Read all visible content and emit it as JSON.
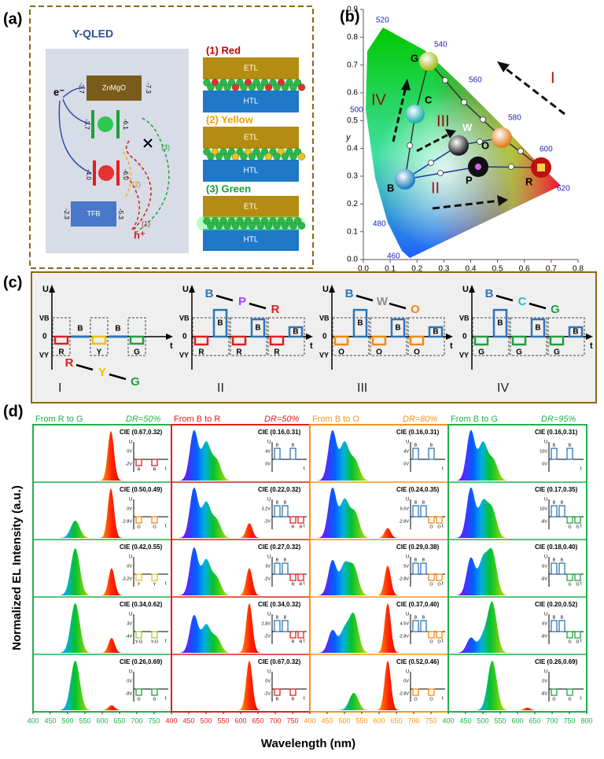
{
  "panel_a": {
    "label": "(a)",
    "title": "Y-QLED",
    "electron": "e⁻",
    "hole": "h⁺",
    "znmgo": "ZnMgO",
    "tfb": "TFB",
    "levels": [
      "-3.7",
      "-7.3",
      "-3.7",
      "-6.1",
      "-4.0",
      "-6.0",
      "-2.3",
      "-5.3"
    ],
    "paths": [
      "(1)",
      "(2)",
      "(3)"
    ],
    "devices": [
      {
        "heading": "(1) Red",
        "etl": "ETL",
        "htl": "HTL"
      },
      {
        "heading": "(2) Yellow",
        "etl": "ETL",
        "htl": "HTL"
      },
      {
        "heading": "(3) Green",
        "etl": "ETL",
        "htl": "HTL"
      }
    ]
  },
  "panel_b": {
    "label": "(b)",
    "ylabel": "y",
    "xlim": [
      0,
      0.8
    ],
    "ylim": [
      0,
      0.9
    ],
    "xticks": [
      {
        "value": 0,
        "label": "0.0"
      },
      0.1,
      0.2,
      0.3,
      0.4,
      0.5,
      0.6,
      0.7,
      0.8
    ],
    "yticks": [
      {
        "value": 0,
        "label": "0.0"
      },
      0.1,
      0.2,
      0.3,
      0.4,
      0.5,
      0.6,
      0.7,
      0.8,
      0.9
    ],
    "wavelengths": [
      "520",
      "540",
      "560",
      "580",
      "600",
      "620",
      "500",
      "480",
      "460"
    ],
    "points": [
      "G",
      "C",
      "W",
      "O",
      "B",
      "P",
      "R"
    ],
    "routes": [
      "I",
      "II",
      "III",
      "IV"
    ]
  },
  "panel_c": {
    "label": "(c)",
    "diagrams": [
      {
        "axis": "U",
        "vb": "VB",
        "zero": "0",
        "vy": "VY",
        "t": "t",
        "sequence": [
          "R",
          "Y",
          "G"
        ],
        "pulses": [
          "R",
          "B",
          "Y",
          "B",
          "G"
        ],
        "route": "I"
      },
      {
        "axis": "U",
        "vb": "VB",
        "zero": "0",
        "vy": "VY",
        "t": "t",
        "sequence": [
          "B",
          "P",
          "R"
        ],
        "pulses": [
          "R",
          "B",
          "R",
          "B",
          "R",
          "B"
        ],
        "route": "II"
      },
      {
        "axis": "U",
        "vb": "VB",
        "zero": "0",
        "vy": "VY",
        "t": "t",
        "sequence": [
          "B",
          "W",
          "O"
        ],
        "pulses": [
          "O",
          "B",
          "O",
          "B",
          "O",
          "B"
        ],
        "route": "III"
      },
      {
        "axis": "U",
        "vb": "VB",
        "zero": "0",
        "vy": "VY",
        "t": "t",
        "sequence": [
          "B",
          "C",
          "G"
        ],
        "pulses": [
          "G",
          "B",
          "G",
          "B",
          "G",
          "B"
        ],
        "route": "IV"
      }
    ]
  },
  "panel_d": {
    "label": "(d)",
    "ylabel": "Normalized EL Intensity (a.u.)",
    "xlabel": "Wavelength (nm)",
    "xlim": [
      400,
      800
    ],
    "xticks": [
      400,
      450,
      500,
      550,
      600,
      650,
      700,
      750,
      800
    ],
    "columns": [
      {
        "header": "From R to G",
        "dr": "DR=50%",
        "color": "#22b14c",
        "cells": [
          {
            "cie": "CIE (0.67,0.32)",
            "u": "U",
            "t": "t",
            "ticks": [
              "0V",
              "-2V"
            ],
            "letters": [
              "R",
              "R"
            ],
            "peaks": [
              [
                625,
                1
              ]
            ]
          },
          {
            "cie": "CIE (0.50,0.49)",
            "u": "U",
            "t": "t",
            "ticks": [
              "0V",
              "-2.8V"
            ],
            "letters": [
              "O",
              "O"
            ],
            "peaks": [
              [
                522,
                0.35
              ],
              [
                625,
                1
              ]
            ]
          },
          {
            "cie": "CIE (0.42,0.55)",
            "u": "U",
            "t": "t",
            "ticks": [
              "0V",
              "-3.2V"
            ],
            "letters": [
              "Y",
              "Y"
            ],
            "peaks": [
              [
                522,
                0.95
              ],
              [
                627,
                0.55
              ]
            ]
          },
          {
            "cie": "CIE (0.34,0.62)",
            "u": "U",
            "t": "t",
            "ticks": [
              "3V",
              "-4V"
            ],
            "letters": [
              "Y-G",
              "Y-G"
            ],
            "peaks": [
              [
                522,
                1
              ],
              [
                627,
                0.3
              ]
            ]
          },
          {
            "cie": "CIE (0.26,0.69)",
            "u": "U",
            "t": "t",
            "ticks": [
              "0V",
              "-8V"
            ],
            "letters": [
              "G",
              "G"
            ],
            "peaks": [
              [
                522,
                1
              ],
              [
                627,
                0.1
              ]
            ]
          }
        ]
      },
      {
        "header": "From B to R",
        "dr": "DR=50%",
        "color": "#e0201b",
        "cells": [
          {
            "cie": "CIE (0.16,0.31)",
            "u": "U",
            "t": "t",
            "ticks": [
              "4V",
              "0V"
            ],
            "letters": [
              "B",
              "B"
            ],
            "peaks": [
              [
                465,
                1
              ],
              [
                500,
                0.75
              ],
              [
                530,
                0.4
              ]
            ]
          },
          {
            "cie": "CIE (0.22,0.32)",
            "u": "U",
            "t": "t",
            "ticks": [
              "3.2V",
              "-2V"
            ],
            "letters": [
              "B",
              "B",
              "R",
              "R"
            ],
            "peaks": [
              [
                465,
                1
              ],
              [
                500,
                0.7
              ],
              [
                530,
                0.35
              ],
              [
                625,
                0.3
              ]
            ]
          },
          {
            "cie": "CIE (0.27,0.32)",
            "u": "U",
            "t": "t",
            "ticks": [
              "3V",
              "-2V"
            ],
            "letters": [
              "B",
              "B",
              "R",
              "R"
            ],
            "peaks": [
              [
                465,
                0.95
              ],
              [
                500,
                0.7
              ],
              [
                530,
                0.35
              ],
              [
                625,
                0.55
              ]
            ]
          },
          {
            "cie": "CIE (0.34,0.32)",
            "u": "U",
            "t": "t",
            "ticks": [
              "2.8V",
              "-2V"
            ],
            "letters": [
              "B",
              "B",
              "R",
              "R"
            ],
            "peaks": [
              [
                465,
                0.75
              ],
              [
                500,
                0.55
              ],
              [
                530,
                0.3
              ],
              [
                625,
                1
              ]
            ]
          },
          {
            "cie": "CIE (0.67,0.32)",
            "u": "U",
            "t": "t",
            "ticks": [
              "0V",
              "-2V"
            ],
            "letters": [
              "R",
              "R"
            ],
            "peaks": [
              [
                625,
                1
              ]
            ]
          }
        ]
      },
      {
        "header": "From B to O",
        "dr": "DR=80%",
        "color": "#f7941d",
        "cells": [
          {
            "cie": "CIE (0.16,0.31)",
            "u": "U",
            "t": "t",
            "ticks": [
              "4V",
              "0V"
            ],
            "letters": [
              "B",
              "B"
            ],
            "peaks": [
              [
                465,
                1
              ],
              [
                500,
                0.75
              ],
              [
                530,
                0.4
              ]
            ]
          },
          {
            "cie": "CIE (0.24,0.35)",
            "u": "U",
            "t": "t",
            "ticks": [
              "5.5V",
              "-2.8V"
            ],
            "letters": [
              "B",
              "B",
              "O",
              "O"
            ],
            "peaks": [
              [
                465,
                1
              ],
              [
                500,
                0.75
              ],
              [
                530,
                0.5
              ],
              [
                625,
                0.2
              ]
            ]
          },
          {
            "cie": "CIE (0.29,0.38)",
            "u": "U",
            "t": "t",
            "ticks": [
              "5V",
              "-2.8V"
            ],
            "letters": [
              "B",
              "B",
              "O",
              "O"
            ],
            "peaks": [
              [
                465,
                0.7
              ],
              [
                500,
                0.6
              ],
              [
                527,
                0.55
              ],
              [
                625,
                0.6
              ]
            ]
          },
          {
            "cie": "CIE (0.37,0.40)",
            "u": "U",
            "t": "t",
            "ticks": [
              "4.5V",
              "-2.8V"
            ],
            "letters": [
              "B",
              "B",
              "O",
              "O"
            ],
            "peaks": [
              [
                465,
                0.45
              ],
              [
                500,
                0.45
              ],
              [
                527,
                0.75
              ],
              [
                625,
                1
              ]
            ]
          },
          {
            "cie": "CIE (0.52,0.46)",
            "u": "U",
            "t": "t",
            "ticks": [
              "0V",
              "-2.8V"
            ],
            "letters": [
              "O",
              "O"
            ],
            "peaks": [
              [
                527,
                0.35
              ],
              [
                625,
                1
              ]
            ]
          }
        ]
      },
      {
        "header": "From B to G",
        "dr": "DR=95%",
        "color": "#22b14c",
        "cells": [
          {
            "cie": "CIE (0.16,0.31)",
            "u": "U",
            "t": "t",
            "ticks": [
              "10V",
              "0V"
            ],
            "letters": [
              "B",
              "B"
            ],
            "peaks": [
              [
                465,
                1
              ],
              [
                500,
                0.75
              ],
              [
                530,
                0.4
              ]
            ]
          },
          {
            "cie": "CIE (0.17,0.35)",
            "u": "U",
            "t": "t",
            "ticks": [
              "10V",
              "-8V"
            ],
            "letters": [
              "B",
              "B",
              "G",
              "G"
            ],
            "peaks": [
              [
                465,
                1
              ],
              [
                500,
                0.7
              ],
              [
                527,
                0.55
              ]
            ]
          },
          {
            "cie": "CIE (0.18,0.40)",
            "u": "U",
            "t": "t",
            "ticks": [
              "6V",
              "-8V"
            ],
            "letters": [
              "B",
              "B",
              "G",
              "G"
            ],
            "peaks": [
              [
                465,
                0.75
              ],
              [
                500,
                0.7
              ],
              [
                527,
                0.85
              ]
            ]
          },
          {
            "cie": "CIE (0.20,0.52)",
            "u": "U",
            "t": "t",
            "ticks": [
              "6V",
              "-8V"
            ],
            "letters": [
              "B",
              "B",
              "G",
              "G"
            ],
            "peaks": [
              [
                465,
                0.3
              ],
              [
                500,
                0.3
              ],
              [
                527,
                1
              ]
            ]
          },
          {
            "cie": "CIE (0.26,0.69)",
            "u": "U",
            "t": "t",
            "ticks": [
              "0V",
              "-8V"
            ],
            "letters": [
              "G",
              "G"
            ],
            "peaks": [
              [
                527,
                1
              ],
              [
                628,
                0.05
              ]
            ]
          }
        ]
      }
    ]
  }
}
